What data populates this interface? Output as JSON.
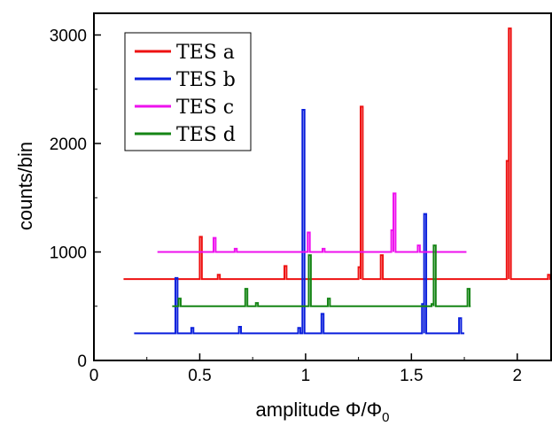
{
  "chart_data": {
    "type": "line",
    "xlabel": "amplitude",
    "xlabel_math": "Φ/Φ",
    "xlabel_sub": "0",
    "ylabel": "counts/bin",
    "xlim": [
      0,
      2.16
    ],
    "ylim": [
      0,
      3200
    ],
    "x_ticks": [
      {
        "value": 0,
        "label": "0"
      },
      {
        "value": 0.5,
        "label": "0.5"
      },
      {
        "value": 1,
        "label": "1"
      },
      {
        "value": 1.5,
        "label": "1.5"
      },
      {
        "value": 2,
        "label": "2"
      }
    ],
    "y_ticks": [
      {
        "value": 0,
        "label": "0"
      },
      {
        "value": 1000,
        "label": "1000"
      },
      {
        "value": 2000,
        "label": "2000"
      },
      {
        "value": 3000,
        "label": "3000"
      }
    ],
    "grid": false,
    "legend_position": "top-left",
    "series": [
      {
        "name": "TES a",
        "color": "#ee1111",
        "baseline": 750,
        "x_range": [
          0.14,
          2.16
        ],
        "peaks": [
          {
            "x": 0.505,
            "y": 1140
          },
          {
            "x": 0.59,
            "y": 790
          },
          {
            "x": 0.905,
            "y": 870
          },
          {
            "x": 1.255,
            "y": 860
          },
          {
            "x": 1.265,
            "y": 2340
          },
          {
            "x": 1.36,
            "y": 970
          },
          {
            "x": 1.955,
            "y": 1840
          },
          {
            "x": 1.965,
            "y": 3060
          },
          {
            "x": 2.15,
            "y": 790
          }
        ]
      },
      {
        "name": "TES b",
        "color": "#0a1fdc",
        "baseline": 250,
        "x_range": [
          0.19,
          1.75
        ],
        "peaks": [
          {
            "x": 0.39,
            "y": 760
          },
          {
            "x": 0.465,
            "y": 300
          },
          {
            "x": 0.69,
            "y": 310
          },
          {
            "x": 0.97,
            "y": 300
          },
          {
            "x": 0.99,
            "y": 2310
          },
          {
            "x": 1.08,
            "y": 430
          },
          {
            "x": 1.555,
            "y": 520
          },
          {
            "x": 1.565,
            "y": 1350
          },
          {
            "x": 1.73,
            "y": 390
          }
        ]
      },
      {
        "name": "TES c",
        "color": "#ee11ee",
        "baseline": 1000,
        "x_range": [
          0.3,
          1.76
        ],
        "peaks": [
          {
            "x": 0.57,
            "y": 1130
          },
          {
            "x": 0.67,
            "y": 1030
          },
          {
            "x": 1.015,
            "y": 1180
          },
          {
            "x": 1.085,
            "y": 1030
          },
          {
            "x": 1.41,
            "y": 1200
          },
          {
            "x": 1.42,
            "y": 1540
          },
          {
            "x": 1.535,
            "y": 1060
          }
        ]
      },
      {
        "name": "TES d",
        "color": "#158515",
        "baseline": 500,
        "x_range": [
          0.37,
          1.78
        ],
        "peaks": [
          {
            "x": 0.405,
            "y": 570
          },
          {
            "x": 0.72,
            "y": 660
          },
          {
            "x": 0.77,
            "y": 530
          },
          {
            "x": 1.02,
            "y": 970
          },
          {
            "x": 1.11,
            "y": 570
          },
          {
            "x": 1.6,
            "y": 520
          },
          {
            "x": 1.61,
            "y": 1060
          },
          {
            "x": 1.77,
            "y": 660
          }
        ]
      }
    ]
  }
}
